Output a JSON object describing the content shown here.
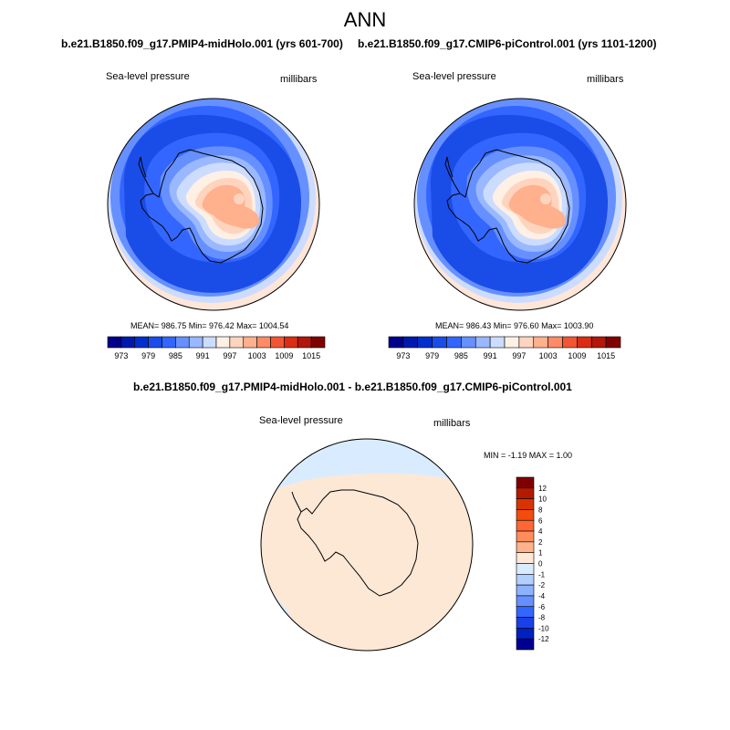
{
  "figure": {
    "title": "ANN",
    "diff_title": "b.e21.B1850.f09_g17.PMIP4-midHolo.001 - b.e21.B1850.f09_g17.CMIP6-piControl.001"
  },
  "panels": [
    {
      "case": "b.e21.B1850.f09_g17.PMIP4-midHolo.001 (yrs 601-700)",
      "variable": "Sea-level pressure",
      "units": "millibars",
      "stats": "MEAN= 986.75  Min= 976.42  Max= 1004.54"
    },
    {
      "case": "b.e21.B1850.f09_g17.CMIP6-piControl.001 (yrs 1101-1200)",
      "variable": "Sea-level pressure",
      "units": "millibars",
      "stats": "MEAN= 986.43  Min= 976.60  Max= 1003.90"
    },
    {
      "variable": "Sea-level pressure",
      "units": "millibars",
      "stats": "MIN =  -1.19 MAX =   1.00"
    }
  ],
  "colorbar_main": {
    "colors": [
      "#00008b",
      "#0019ad",
      "#0030cc",
      "#1a4ce8",
      "#3366ff",
      "#6690ff",
      "#99b8ff",
      "#ccdcff",
      "#fff0e6",
      "#ffd4bf",
      "#ffb08c",
      "#ff8a66",
      "#f25533",
      "#d92d14",
      "#b3160a",
      "#800000"
    ],
    "labels": [
      "973",
      "979",
      "985",
      "991",
      "997",
      "1003",
      "1009",
      "1015"
    ]
  },
  "colorbar_diff": {
    "colors": [
      "#800000",
      "#b31a00",
      "#d93300",
      "#f24d0d",
      "#ff6633",
      "#ff8c5c",
      "#ffb38a",
      "#ffe8d6",
      "#d9ecff",
      "#b3cfff",
      "#8cb3ff",
      "#6690ff",
      "#3366ff",
      "#1a40e6",
      "#0020c0",
      "#000090"
    ],
    "labels": [
      "12",
      "10",
      "8",
      "6",
      "4",
      "2",
      "1",
      "0",
      "-1",
      "-2",
      "-4",
      "-6",
      "-8",
      "-10",
      "-12"
    ]
  }
}
